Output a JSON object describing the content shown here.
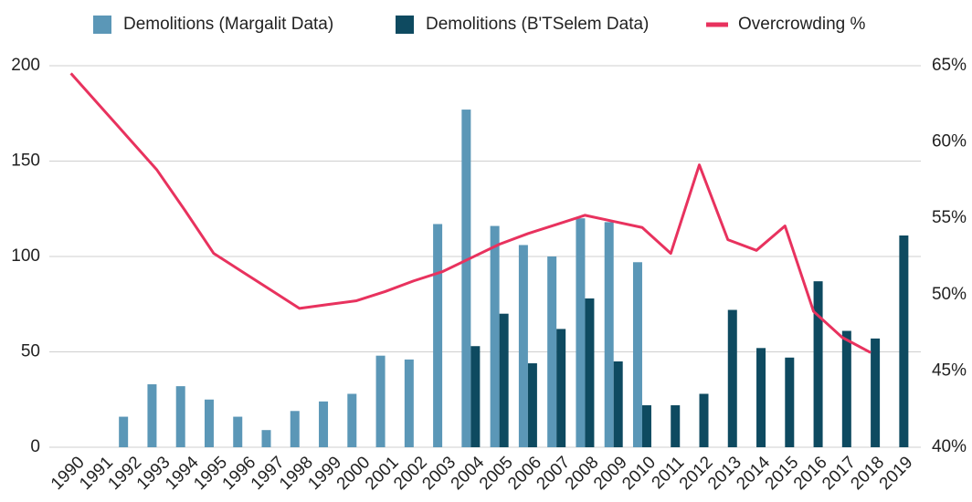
{
  "chart_data": {
    "type": "bar_line",
    "categories": [
      "1990",
      "1991",
      "1992",
      "1993",
      "1994",
      "1995",
      "1996",
      "1997",
      "1998",
      "1999",
      "2000",
      "2001",
      "2002",
      "2003",
      "2004",
      "2005",
      "2006",
      "2007",
      "2008",
      "2009",
      "2010",
      "2011",
      "2012",
      "2013",
      "2014",
      "2015",
      "2016",
      "2017",
      "2018",
      "2019"
    ],
    "series": [
      {
        "name": "Demolitions (Margalit Data)",
        "type": "bar",
        "color": "#5b97b7",
        "values": [
          null,
          null,
          16,
          33,
          32,
          25,
          16,
          9,
          19,
          24,
          28,
          48,
          46,
          117,
          177,
          116,
          106,
          100,
          120,
          118,
          97,
          null,
          null,
          null,
          null,
          null,
          null,
          null,
          null,
          null
        ]
      },
      {
        "name": "Demolitions (B'TSelem Data)",
        "type": "bar",
        "color": "#0e4a60",
        "values": [
          null,
          null,
          null,
          null,
          null,
          null,
          null,
          null,
          null,
          null,
          null,
          null,
          null,
          null,
          53,
          70,
          44,
          62,
          78,
          45,
          22,
          22,
          28,
          72,
          52,
          47,
          87,
          61,
          57,
          111
        ]
      },
      {
        "name": "Overcrowding %",
        "type": "line",
        "axis": "y2",
        "color": "#e8325e",
        "values": [
          64.5,
          62.4,
          60.3,
          58.2,
          55.5,
          52.7,
          51.5,
          50.3,
          49.1,
          49.35,
          49.6,
          50.2,
          50.9,
          51.5,
          52.4,
          53.3,
          54.0,
          54.6,
          55.2,
          54.8,
          54.4,
          52.7,
          58.5,
          53.6,
          52.9,
          54.5,
          48.9,
          47.2,
          46.2,
          null
        ]
      }
    ],
    "ylim": [
      0,
      200
    ],
    "yticks": [
      0,
      50,
      100,
      150,
      200
    ],
    "y2lim": [
      40,
      65
    ],
    "y2ticks": [
      {
        "value": 40,
        "label": "40%"
      },
      {
        "value": 45,
        "label": "45%"
      },
      {
        "value": 50,
        "label": "50%"
      },
      {
        "value": 55,
        "label": "55%"
      },
      {
        "value": 60,
        "label": "60%"
      },
      {
        "value": 65,
        "label": "65%"
      }
    ],
    "grid": true,
    "legend": "top"
  }
}
